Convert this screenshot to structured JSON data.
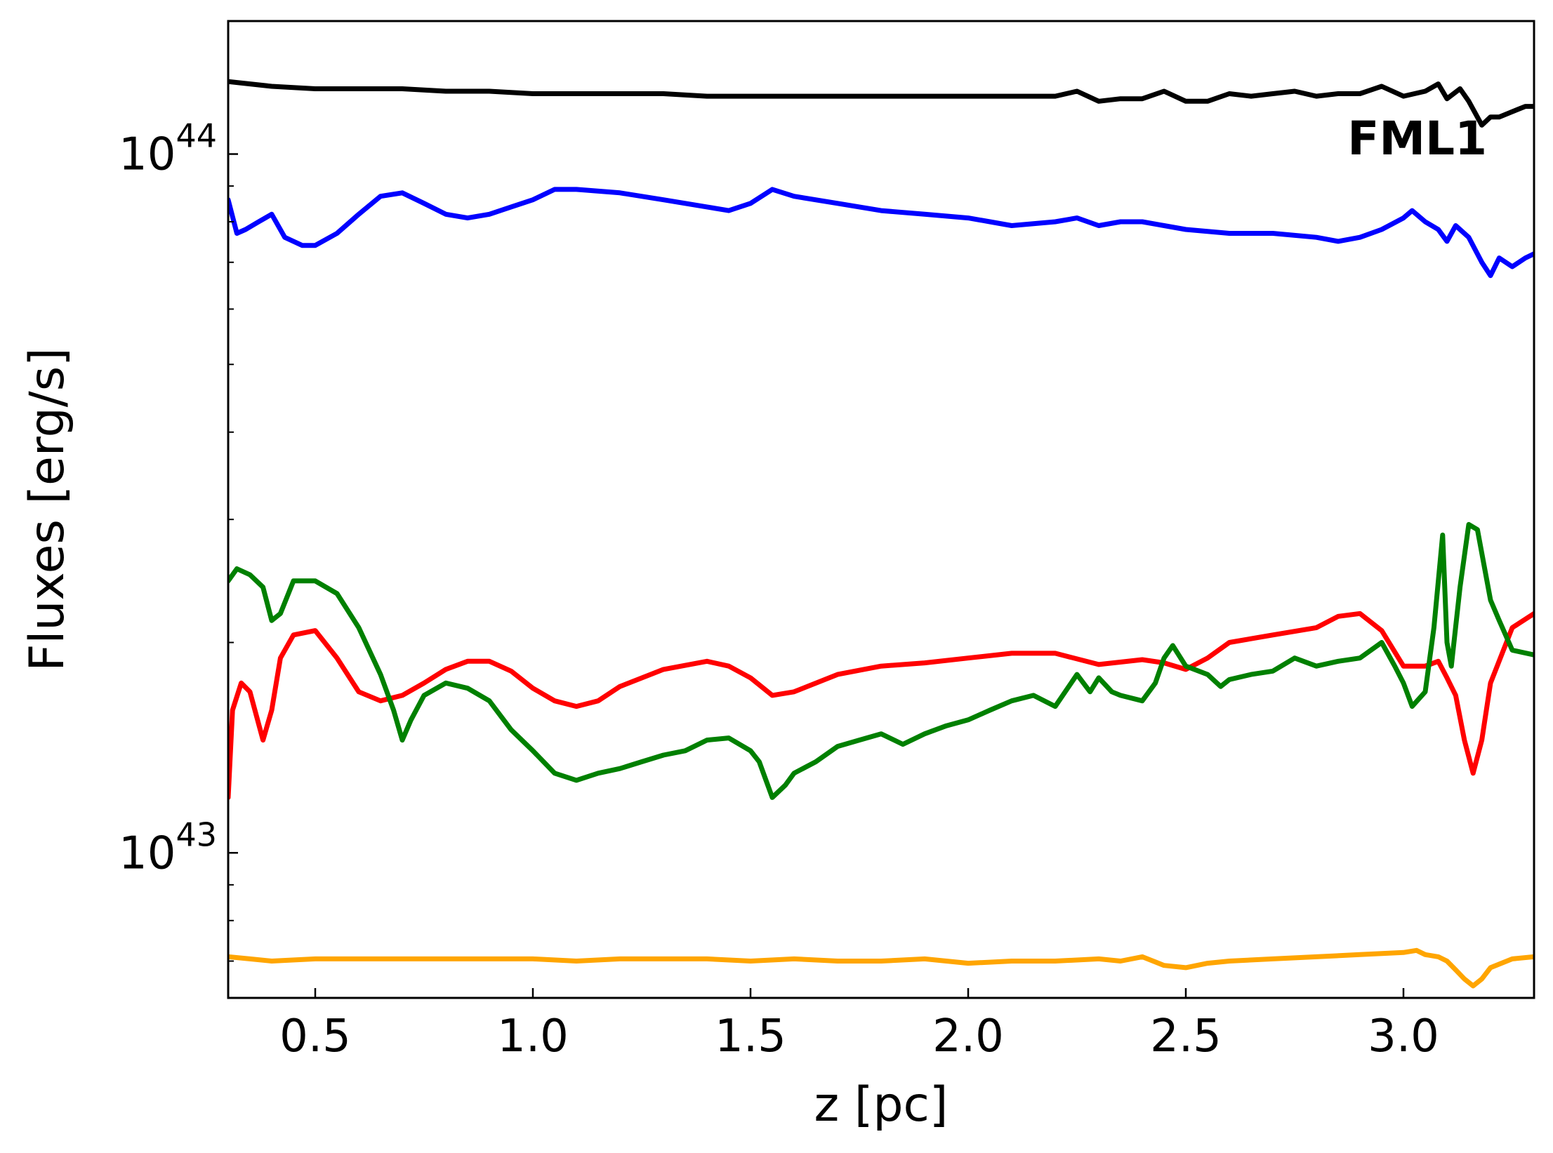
{
  "chart_data": {
    "type": "line",
    "title": "",
    "xlabel": "z [pc]",
    "ylabel": "Fluxes [erg/s]",
    "xlim": [
      0.3,
      3.3
    ],
    "ylim": [
      6.2e+42,
      1.55e+44
    ],
    "yscale": "log",
    "grid": false,
    "legend": "none",
    "annotation": {
      "text": "FML1",
      "placement": "top-right"
    },
    "x_ticks": [
      {
        "value": 0.5,
        "label": "0.5"
      },
      {
        "value": 1.0,
        "label": "1.0"
      },
      {
        "value": 1.5,
        "label": "1.5"
      },
      {
        "value": 2.0,
        "label": "2.0"
      },
      {
        "value": 2.5,
        "label": "2.5"
      },
      {
        "value": 3.0,
        "label": "3.0"
      }
    ],
    "y_major_ticks": [
      {
        "value": 1e+43,
        "base": "10",
        "exponent": "43"
      },
      {
        "value": 1e+44,
        "base": "10",
        "exponent": "44"
      }
    ],
    "y_minor_ticks": [
      7e+42,
      8e+42,
      9e+42,
      2e+43,
      3e+43,
      4e+43,
      5e+43,
      6e+43,
      7e+43,
      8e+43,
      9e+43
    ],
    "series": [
      {
        "color": "#000000",
        "x": [
          0.3,
          0.4,
          0.5,
          0.6,
          0.7,
          0.8,
          0.9,
          1.0,
          1.1,
          1.2,
          1.3,
          1.4,
          1.5,
          1.6,
          1.7,
          1.8,
          1.9,
          2.0,
          2.1,
          2.2,
          2.25,
          2.3,
          2.35,
          2.4,
          2.45,
          2.5,
          2.55,
          2.6,
          2.65,
          2.7,
          2.75,
          2.8,
          2.85,
          2.9,
          2.95,
          3.0,
          3.05,
          3.08,
          3.1,
          3.13,
          3.15,
          3.18,
          3.2,
          3.22,
          3.25,
          3.28,
          3.3
        ],
        "y": [
          1.27e+44,
          1.25e+44,
          1.24e+44,
          1.24e+44,
          1.24e+44,
          1.23e+44,
          1.23e+44,
          1.22e+44,
          1.22e+44,
          1.22e+44,
          1.22e+44,
          1.21e+44,
          1.21e+44,
          1.21e+44,
          1.21e+44,
          1.21e+44,
          1.21e+44,
          1.21e+44,
          1.21e+44,
          1.21e+44,
          1.23e+44,
          1.19e+44,
          1.2e+44,
          1.2e+44,
          1.23e+44,
          1.19e+44,
          1.19e+44,
          1.22e+44,
          1.21e+44,
          1.22e+44,
          1.23e+44,
          1.21e+44,
          1.22e+44,
          1.22e+44,
          1.25e+44,
          1.21e+44,
          1.23e+44,
          1.26e+44,
          1.2e+44,
          1.24e+44,
          1.19e+44,
          1.1e+44,
          1.13e+44,
          1.13e+44,
          1.15e+44,
          1.17e+44,
          1.17e+44
        ]
      },
      {
        "color": "#0000ff",
        "x": [
          0.3,
          0.32,
          0.34,
          0.37,
          0.4,
          0.43,
          0.47,
          0.5,
          0.55,
          0.6,
          0.65,
          0.7,
          0.75,
          0.8,
          0.85,
          0.9,
          0.95,
          1.0,
          1.05,
          1.1,
          1.2,
          1.3,
          1.4,
          1.45,
          1.5,
          1.55,
          1.6,
          1.7,
          1.8,
          1.9,
          2.0,
          2.05,
          2.1,
          2.2,
          2.25,
          2.3,
          2.35,
          2.4,
          2.45,
          2.5,
          2.6,
          2.7,
          2.8,
          2.85,
          2.9,
          2.95,
          3.0,
          3.02,
          3.05,
          3.08,
          3.1,
          3.12,
          3.15,
          3.18,
          3.2,
          3.22,
          3.25,
          3.28,
          3.3
        ],
        "y": [
          8.6e+43,
          7.7e+43,
          7.8e+43,
          8e+43,
          8.2e+43,
          7.6e+43,
          7.4e+43,
          7.4e+43,
          7.7e+43,
          8.2e+43,
          8.7e+43,
          8.8e+43,
          8.5e+43,
          8.2e+43,
          8.1e+43,
          8.2e+43,
          8.4e+43,
          8.6e+43,
          8.9e+43,
          8.9e+43,
          8.8e+43,
          8.6e+43,
          8.4e+43,
          8.3e+43,
          8.5e+43,
          8.9e+43,
          8.7e+43,
          8.5e+43,
          8.3e+43,
          8.2e+43,
          8.1e+43,
          8e+43,
          7.9e+43,
          8e+43,
          8.1e+43,
          7.9e+43,
          8e+43,
          8e+43,
          7.9e+43,
          7.8e+43,
          7.7e+43,
          7.7e+43,
          7.6e+43,
          7.5e+43,
          7.6e+43,
          7.8e+43,
          8.1e+43,
          8.3e+43,
          8e+43,
          7.8e+43,
          7.5e+43,
          7.9e+43,
          7.6e+43,
          7e+43,
          6.7e+43,
          7.1e+43,
          6.9e+43,
          7.1e+43,
          7.2e+43
        ]
      },
      {
        "color": "#ff0000",
        "x": [
          0.3,
          0.31,
          0.33,
          0.35,
          0.38,
          0.4,
          0.42,
          0.45,
          0.5,
          0.55,
          0.6,
          0.65,
          0.7,
          0.75,
          0.8,
          0.85,
          0.9,
          0.95,
          1.0,
          1.05,
          1.1,
          1.15,
          1.2,
          1.3,
          1.4,
          1.45,
          1.5,
          1.55,
          1.6,
          1.7,
          1.8,
          1.9,
          2.0,
          2.1,
          2.2,
          2.3,
          2.4,
          2.45,
          2.5,
          2.55,
          2.6,
          2.7,
          2.8,
          2.85,
          2.9,
          2.95,
          3.0,
          3.05,
          3.08,
          3.1,
          3.12,
          3.14,
          3.16,
          3.18,
          3.2,
          3.25,
          3.3
        ],
        "y": [
          1.2e+43,
          1.6e+43,
          1.75e+43,
          1.7e+43,
          1.45e+43,
          1.6e+43,
          1.9e+43,
          2.05e+43,
          2.08e+43,
          1.9e+43,
          1.7e+43,
          1.65e+43,
          1.68e+43,
          1.75e+43,
          1.83e+43,
          1.88e+43,
          1.88e+43,
          1.82e+43,
          1.72e+43,
          1.65e+43,
          1.62e+43,
          1.65e+43,
          1.73e+43,
          1.83e+43,
          1.88e+43,
          1.85e+43,
          1.78e+43,
          1.68e+43,
          1.7e+43,
          1.8e+43,
          1.85e+43,
          1.87e+43,
          1.9e+43,
          1.93e+43,
          1.93e+43,
          1.86e+43,
          1.89e+43,
          1.87e+43,
          1.83e+43,
          1.9e+43,
          2e+43,
          2.05e+43,
          2.1e+43,
          2.18e+43,
          2.2e+43,
          2.08e+43,
          1.85e+43,
          1.85e+43,
          1.88e+43,
          1.78e+43,
          1.68e+43,
          1.45e+43,
          1.3e+43,
          1.45e+43,
          1.75e+43,
          2.1e+43,
          2.2e+43
        ]
      },
      {
        "color": "#008000",
        "x": [
          0.3,
          0.32,
          0.35,
          0.38,
          0.4,
          0.42,
          0.45,
          0.5,
          0.55,
          0.6,
          0.65,
          0.68,
          0.7,
          0.72,
          0.75,
          0.8,
          0.85,
          0.9,
          0.95,
          1.0,
          1.05,
          1.1,
          1.15,
          1.2,
          1.25,
          1.3,
          1.35,
          1.4,
          1.45,
          1.5,
          1.52,
          1.55,
          1.58,
          1.6,
          1.65,
          1.7,
          1.75,
          1.8,
          1.85,
          1.9,
          1.95,
          2.0,
          2.05,
          2.1,
          2.15,
          2.2,
          2.25,
          2.28,
          2.3,
          2.33,
          2.35,
          2.4,
          2.43,
          2.45,
          2.47,
          2.5,
          2.55,
          2.58,
          2.6,
          2.65,
          2.7,
          2.75,
          2.8,
          2.85,
          2.9,
          2.95,
          2.98,
          3.0,
          3.02,
          3.05,
          3.07,
          3.09,
          3.1,
          3.11,
          3.13,
          3.15,
          3.17,
          3.2,
          3.22,
          3.25,
          3.3
        ],
        "y": [
          2.45e+43,
          2.55e+43,
          2.5e+43,
          2.4e+43,
          2.15e+43,
          2.2e+43,
          2.45e+43,
          2.45e+43,
          2.35e+43,
          2.1e+43,
          1.8e+43,
          1.6e+43,
          1.45e+43,
          1.55e+43,
          1.68e+43,
          1.75e+43,
          1.72e+43,
          1.65e+43,
          1.5e+43,
          1.4e+43,
          1.3e+43,
          1.27e+43,
          1.3e+43,
          1.32e+43,
          1.35e+43,
          1.38e+43,
          1.4e+43,
          1.45e+43,
          1.46e+43,
          1.4e+43,
          1.35e+43,
          1.2e+43,
          1.25e+43,
          1.3e+43,
          1.35e+43,
          1.42e+43,
          1.45e+43,
          1.48e+43,
          1.43e+43,
          1.48e+43,
          1.52e+43,
          1.55e+43,
          1.6e+43,
          1.65e+43,
          1.68e+43,
          1.62e+43,
          1.8e+43,
          1.7e+43,
          1.78e+43,
          1.7e+43,
          1.68e+43,
          1.65e+43,
          1.75e+43,
          1.9e+43,
          1.98e+43,
          1.85e+43,
          1.8e+43,
          1.73e+43,
          1.77e+43,
          1.8e+43,
          1.82e+43,
          1.9e+43,
          1.85e+43,
          1.88e+43,
          1.9e+43,
          2e+43,
          1.85e+43,
          1.75e+43,
          1.62e+43,
          1.7e+43,
          2.1e+43,
          2.85e+43,
          2e+43,
          1.85e+43,
          2.4e+43,
          2.95e+43,
          2.9e+43,
          2.3e+43,
          2.15e+43,
          1.95e+43,
          1.92e+43
        ]
      },
      {
        "color": "#ffa500",
        "x": [
          0.3,
          0.35,
          0.4,
          0.5,
          0.6,
          0.7,
          0.8,
          0.9,
          1.0,
          1.1,
          1.2,
          1.3,
          1.4,
          1.5,
          1.6,
          1.7,
          1.8,
          1.9,
          2.0,
          2.1,
          2.2,
          2.3,
          2.35,
          2.4,
          2.45,
          2.5,
          2.55,
          2.6,
          2.7,
          2.8,
          2.9,
          3.0,
          3.03,
          3.05,
          3.08,
          3.1,
          3.12,
          3.14,
          3.16,
          3.18,
          3.2,
          3.25,
          3.3
        ],
        "y": [
          7.1e+42,
          7.05e+42,
          7e+42,
          7.05e+42,
          7.05e+42,
          7.05e+42,
          7.05e+42,
          7.05e+42,
          7.05e+42,
          7e+42,
          7.05e+42,
          7.05e+42,
          7.05e+42,
          7e+42,
          7.05e+42,
          7e+42,
          7e+42,
          7.05e+42,
          6.95e+42,
          7e+42,
          7e+42,
          7.05e+42,
          7e+42,
          7.1e+42,
          6.9e+42,
          6.85e+42,
          6.95e+42,
          7e+42,
          7.05e+42,
          7.1e+42,
          7.15e+42,
          7.2e+42,
          7.25e+42,
          7.15e+42,
          7.1e+42,
          7e+42,
          6.8e+42,
          6.6e+42,
          6.45e+42,
          6.6e+42,
          6.85e+42,
          7.05e+42,
          7.1e+42
        ]
      }
    ]
  }
}
